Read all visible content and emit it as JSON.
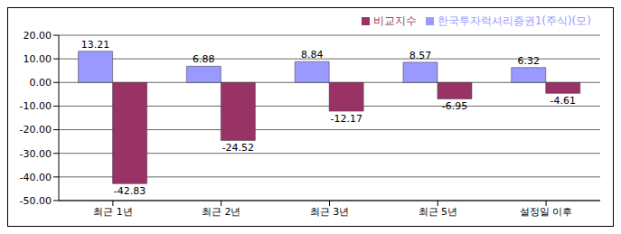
{
  "chart_data": {
    "type": "bar",
    "categories": [
      "최근 1년",
      "최근 2년",
      "최근 3년",
      "최근 5년",
      "설정일 이후"
    ],
    "series": [
      {
        "name": "한국투자럭셔리증권1(주식)(모)",
        "color": "#9999ff",
        "values": [
          13.21,
          6.88,
          8.84,
          8.57,
          6.32
        ]
      },
      {
        "name": "비교지수",
        "color": "#993366",
        "values": [
          -42.83,
          -24.52,
          -12.17,
          -6.95,
          -4.61
        ]
      }
    ],
    "ylim": [
      -50,
      20
    ],
    "yticks": [
      {
        "value": 20,
        "label": "20.00"
      },
      {
        "value": 10,
        "label": "10.00"
      },
      {
        "value": 0,
        "label": "0.00"
      },
      {
        "value": -10,
        "label": "-10.00"
      },
      {
        "value": -20,
        "label": "-20.00"
      },
      {
        "value": -30,
        "label": "-30.00"
      },
      {
        "value": -40,
        "label": "-40.00"
      },
      {
        "value": -50,
        "label": "-50.00"
      }
    ],
    "grid": true,
    "legend": "top-right",
    "data_labels": true
  }
}
